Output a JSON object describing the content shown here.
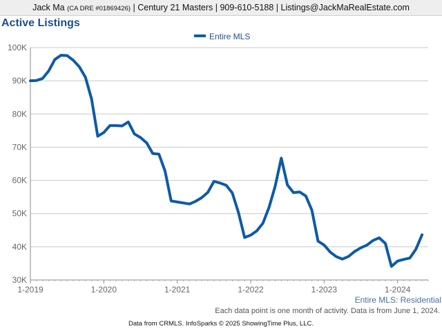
{
  "header": {
    "agent": "Jack Ma",
    "license": "(CA DRE #01869426)",
    "rest": "| Century 21 Masters | 909-610-5188 | Listings@JackMaRealEstate.com"
  },
  "series_label": "Entire MLS: Residential",
  "note": "Each data point is one month of activity. Data is from June 1, 2024.",
  "footer": "Data from CRMLS. InfoSparks © 2025 ShowingTime Plus, LLC.",
  "colors": {
    "line": "#0e5aa7",
    "grid": "#c8c8c8",
    "title": "#1f4e8c"
  },
  "chart_data": {
    "type": "line",
    "title": "Active Listings",
    "xlabel": "",
    "ylabel": "",
    "ylim": [
      30000,
      100000
    ],
    "y_ticks": [
      30000,
      40000,
      50000,
      60000,
      70000,
      80000,
      90000,
      100000
    ],
    "y_tick_labels": [
      "30K",
      "40K",
      "50K",
      "60K",
      "70K",
      "80K",
      "90K",
      "100K"
    ],
    "x_ticks": [
      "2019-01",
      "2020-01",
      "2021-01",
      "2022-01",
      "2023-01",
      "2024-01"
    ],
    "x_tick_labels": [
      "1-2019",
      "1-2020",
      "1-2021",
      "1-2022",
      "1-2023",
      "1-2024"
    ],
    "grid": true,
    "legend_position": "top-center",
    "series": [
      {
        "name": "Entire MLS",
        "x": [
          "2019-01",
          "2019-02",
          "2019-03",
          "2019-04",
          "2019-05",
          "2019-06",
          "2019-07",
          "2019-08",
          "2019-09",
          "2019-10",
          "2019-11",
          "2019-12",
          "2020-01",
          "2020-02",
          "2020-03",
          "2020-04",
          "2020-05",
          "2020-06",
          "2020-07",
          "2020-08",
          "2020-09",
          "2020-10",
          "2020-11",
          "2020-12",
          "2021-01",
          "2021-02",
          "2021-03",
          "2021-04",
          "2021-05",
          "2021-06",
          "2021-07",
          "2021-08",
          "2021-09",
          "2021-10",
          "2021-11",
          "2021-12",
          "2022-01",
          "2022-02",
          "2022-03",
          "2022-04",
          "2022-05",
          "2022-06",
          "2022-07",
          "2022-08",
          "2022-09",
          "2022-10",
          "2022-11",
          "2022-12",
          "2023-01",
          "2023-02",
          "2023-03",
          "2023-04",
          "2023-05",
          "2023-06",
          "2023-07",
          "2023-08",
          "2023-09",
          "2023-10",
          "2023-11",
          "2023-12",
          "2024-01",
          "2024-02",
          "2024-03",
          "2024-04",
          "2024-05"
        ],
        "values": [
          90000,
          90100,
          90700,
          93000,
          96400,
          97700,
          97600,
          96200,
          94200,
          91000,
          84500,
          73300,
          74400,
          76500,
          76500,
          76400,
          77600,
          74000,
          72900,
          71300,
          68100,
          67900,
          62800,
          53800,
          53500,
          53200,
          52900,
          53700,
          54800,
          56400,
          59700,
          59200,
          58500,
          56200,
          50300,
          42800,
          43500,
          44800,
          47100,
          51900,
          58300,
          66700,
          58600,
          56300,
          56500,
          55300,
          51000,
          41700,
          40500,
          38400,
          37000,
          36300,
          37100,
          38600,
          39700,
          40500,
          41900,
          42700,
          41000,
          34100,
          35700,
          36200,
          36600,
          39300,
          43600
        ]
      }
    ]
  }
}
